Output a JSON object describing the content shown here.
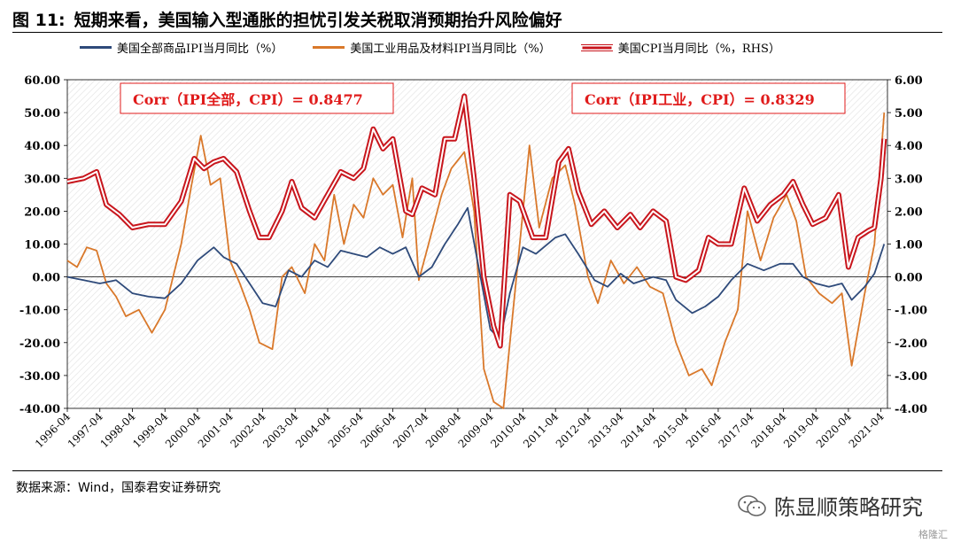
{
  "figure": {
    "number": "图 11:",
    "title": "短期来看，美国输入型通胀的担忧引发关税取消预期抬升风险偏好"
  },
  "source_text": "数据来源：Wind，国泰君安证券研究",
  "watermark": {
    "text": "陈显顺策略研究",
    "icon": "wechat-icon"
  },
  "corner_mark": "格隆汇",
  "colors": {
    "all": "#2e4a7a",
    "ind": "#d9782a",
    "cpi": "#c8161d",
    "annot": "#e01b1b"
  },
  "chart_data": {
    "type": "line",
    "legend_position": "top",
    "grid": false,
    "hatched_background": true,
    "x_ticks": [
      "1996-04",
      "1997-04",
      "1998-04",
      "1999-04",
      "2000-04",
      "2001-04",
      "2002-04",
      "2003-04",
      "2004-04",
      "2005-04",
      "2006-04",
      "2007-04",
      "2008-04",
      "2009-04",
      "2010-04",
      "2011-04",
      "2012-04",
      "2013-04",
      "2014-04",
      "2015-04",
      "2016-04",
      "2017-04",
      "2018-04",
      "2019-04",
      "2020-04",
      "2021-04"
    ],
    "y_left": {
      "min": -40,
      "max": 60,
      "ticks": [
        "60.00",
        "50.00",
        "40.00",
        "30.00",
        "20.00",
        "10.00",
        "0.00",
        "-10.00",
        "-20.00",
        "-30.00",
        "-40.00"
      ]
    },
    "y_right": {
      "min": -4,
      "max": 6,
      "ticks": [
        "6.00",
        "5.00",
        "4.00",
        "3.00",
        "2.00",
        "1.00",
        "0.00",
        "-1.00",
        "-2.00",
        "-3.00",
        "-4.00"
      ]
    },
    "annotations": [
      "Corr（IPI全部，CPI）= 0.8477",
      "Corr（IPI工业，CPI）= 0.8329"
    ],
    "series": [
      {
        "name": "美国全部商品IPI当月同比（%）",
        "axis": "left",
        "style": "thin",
        "points": [
          [
            1996.3,
            0
          ],
          [
            1996.8,
            -1
          ],
          [
            1997.3,
            -2
          ],
          [
            1997.8,
            -1
          ],
          [
            1998.3,
            -5
          ],
          [
            1998.8,
            -6
          ],
          [
            1999.3,
            -6.5
          ],
          [
            1999.8,
            -2
          ],
          [
            2000.3,
            5
          ],
          [
            2000.8,
            9
          ],
          [
            2001.1,
            6
          ],
          [
            2001.5,
            4
          ],
          [
            2001.9,
            -2
          ],
          [
            2002.3,
            -8
          ],
          [
            2002.7,
            -9
          ],
          [
            2003.1,
            2
          ],
          [
            2003.5,
            0
          ],
          [
            2003.9,
            5
          ],
          [
            2004.3,
            3
          ],
          [
            2004.7,
            8
          ],
          [
            2005.1,
            7
          ],
          [
            2005.5,
            6
          ],
          [
            2005.9,
            9
          ],
          [
            2006.3,
            7
          ],
          [
            2006.7,
            9
          ],
          [
            2007.1,
            0
          ],
          [
            2007.5,
            3
          ],
          [
            2007.9,
            10
          ],
          [
            2008.3,
            16
          ],
          [
            2008.6,
            21
          ],
          [
            2008.9,
            5
          ],
          [
            2009.3,
            -16
          ],
          [
            2009.6,
            -19
          ],
          [
            2009.9,
            -5
          ],
          [
            2010.3,
            9
          ],
          [
            2010.7,
            7
          ],
          [
            2011.3,
            12
          ],
          [
            2011.6,
            13
          ],
          [
            2012.0,
            7
          ],
          [
            2012.5,
            -1
          ],
          [
            2012.9,
            -3
          ],
          [
            2013.3,
            1
          ],
          [
            2013.7,
            -2
          ],
          [
            2014.3,
            0
          ],
          [
            2014.7,
            -1
          ],
          [
            2015.0,
            -7
          ],
          [
            2015.5,
            -11
          ],
          [
            2015.9,
            -9
          ],
          [
            2016.3,
            -6
          ],
          [
            2016.7,
            -1
          ],
          [
            2017.2,
            4
          ],
          [
            2017.7,
            2
          ],
          [
            2018.2,
            4
          ],
          [
            2018.6,
            4
          ],
          [
            2018.9,
            0
          ],
          [
            2019.3,
            -2
          ],
          [
            2019.7,
            -3
          ],
          [
            2020.1,
            -2
          ],
          [
            2020.4,
            -7
          ],
          [
            2020.8,
            -3
          ],
          [
            2021.1,
            1
          ],
          [
            2021.4,
            10
          ]
        ]
      },
      {
        "name": "美国工业用品及材料IPI当月同比（%）",
        "axis": "left",
        "style": "thin",
        "points": [
          [
            1996.3,
            5
          ],
          [
            1996.6,
            3
          ],
          [
            1996.9,
            9
          ],
          [
            1997.2,
            8
          ],
          [
            1997.5,
            -2
          ],
          [
            1997.8,
            -6
          ],
          [
            1998.1,
            -12
          ],
          [
            1998.5,
            -10
          ],
          [
            1998.9,
            -17
          ],
          [
            1999.3,
            -10
          ],
          [
            1999.8,
            10
          ],
          [
            2000.1,
            27
          ],
          [
            2000.4,
            43
          ],
          [
            2000.7,
            28
          ],
          [
            2001.0,
            30
          ],
          [
            2001.3,
            5
          ],
          [
            2001.6,
            -2
          ],
          [
            2001.9,
            -10
          ],
          [
            2002.2,
            -20
          ],
          [
            2002.6,
            -22
          ],
          [
            2002.9,
            0
          ],
          [
            2003.2,
            3
          ],
          [
            2003.6,
            -5
          ],
          [
            2003.9,
            10
          ],
          [
            2004.2,
            5
          ],
          [
            2004.5,
            25
          ],
          [
            2004.8,
            10
          ],
          [
            2005.1,
            22
          ],
          [
            2005.4,
            18
          ],
          [
            2005.7,
            30
          ],
          [
            2006.0,
            25
          ],
          [
            2006.3,
            28
          ],
          [
            2006.6,
            12
          ],
          [
            2006.9,
            30
          ],
          [
            2007.1,
            -1
          ],
          [
            2007.4,
            10
          ],
          [
            2007.8,
            25
          ],
          [
            2008.1,
            33
          ],
          [
            2008.5,
            38
          ],
          [
            2008.8,
            20
          ],
          [
            2009.1,
            -28
          ],
          [
            2009.4,
            -38
          ],
          [
            2009.7,
            -40
          ],
          [
            2009.9,
            -20
          ],
          [
            2010.2,
            10
          ],
          [
            2010.5,
            40
          ],
          [
            2010.8,
            15
          ],
          [
            2011.2,
            30
          ],
          [
            2011.6,
            34
          ],
          [
            2011.9,
            22
          ],
          [
            2012.3,
            0
          ],
          [
            2012.6,
            -8
          ],
          [
            2013.0,
            5
          ],
          [
            2013.4,
            -2
          ],
          [
            2013.8,
            3
          ],
          [
            2014.2,
            -3
          ],
          [
            2014.6,
            -5
          ],
          [
            2015.0,
            -20
          ],
          [
            2015.4,
            -30
          ],
          [
            2015.8,
            -28
          ],
          [
            2016.1,
            -33
          ],
          [
            2016.5,
            -20
          ],
          [
            2016.9,
            -10
          ],
          [
            2017.2,
            20
          ],
          [
            2017.6,
            5
          ],
          [
            2018.0,
            18
          ],
          [
            2018.4,
            25
          ],
          [
            2018.7,
            17
          ],
          [
            2019.0,
            0
          ],
          [
            2019.4,
            -5
          ],
          [
            2019.8,
            -8
          ],
          [
            2020.1,
            -5
          ],
          [
            2020.4,
            -27
          ],
          [
            2020.8,
            -5
          ],
          [
            2021.1,
            10
          ],
          [
            2021.4,
            50
          ]
        ]
      },
      {
        "name": "美国CPI当月同比（%，RHS）",
        "axis": "right",
        "style": "double",
        "points": [
          [
            1996.3,
            2.9
          ],
          [
            1996.8,
            3.0
          ],
          [
            1997.2,
            3.2
          ],
          [
            1997.5,
            2.2
          ],
          [
            1997.9,
            1.9
          ],
          [
            1998.3,
            1.5
          ],
          [
            1998.8,
            1.6
          ],
          [
            1999.3,
            1.6
          ],
          [
            1999.8,
            2.3
          ],
          [
            2000.2,
            3.6
          ],
          [
            2000.5,
            3.3
          ],
          [
            2000.8,
            3.5
          ],
          [
            2001.1,
            3.6
          ],
          [
            2001.5,
            3.2
          ],
          [
            2001.9,
            2.0
          ],
          [
            2002.2,
            1.2
          ],
          [
            2002.5,
            1.2
          ],
          [
            2002.9,
            2.0
          ],
          [
            2003.2,
            2.9
          ],
          [
            2003.5,
            2.1
          ],
          [
            2003.9,
            1.8
          ],
          [
            2004.3,
            2.5
          ],
          [
            2004.7,
            3.2
          ],
          [
            2005.1,
            3.0
          ],
          [
            2005.4,
            3.3
          ],
          [
            2005.7,
            4.5
          ],
          [
            2006.0,
            3.9
          ],
          [
            2006.3,
            4.2
          ],
          [
            2006.7,
            2.0
          ],
          [
            2006.9,
            1.9
          ],
          [
            2007.2,
            2.7
          ],
          [
            2007.6,
            2.5
          ],
          [
            2007.9,
            4.2
          ],
          [
            2008.2,
            4.2
          ],
          [
            2008.5,
            5.5
          ],
          [
            2008.8,
            3.0
          ],
          [
            2009.1,
            0.0
          ],
          [
            2009.4,
            -1.5
          ],
          [
            2009.6,
            -2.1
          ],
          [
            2009.9,
            2.5
          ],
          [
            2010.2,
            2.3
          ],
          [
            2010.6,
            1.2
          ],
          [
            2011.0,
            1.2
          ],
          [
            2011.4,
            3.5
          ],
          [
            2011.7,
            3.9
          ],
          [
            2012.0,
            2.6
          ],
          [
            2012.4,
            1.6
          ],
          [
            2012.8,
            2.0
          ],
          [
            2013.2,
            1.5
          ],
          [
            2013.6,
            1.9
          ],
          [
            2013.9,
            1.5
          ],
          [
            2014.3,
            2.0
          ],
          [
            2014.7,
            1.7
          ],
          [
            2015.0,
            0.0
          ],
          [
            2015.3,
            -0.1
          ],
          [
            2015.7,
            0.2
          ],
          [
            2016.0,
            1.2
          ],
          [
            2016.3,
            1.0
          ],
          [
            2016.7,
            1.0
          ],
          [
            2017.1,
            2.7
          ],
          [
            2017.5,
            1.7
          ],
          [
            2017.9,
            2.2
          ],
          [
            2018.3,
            2.5
          ],
          [
            2018.6,
            2.9
          ],
          [
            2018.9,
            2.2
          ],
          [
            2019.2,
            1.6
          ],
          [
            2019.6,
            1.8
          ],
          [
            2020.0,
            2.5
          ],
          [
            2020.3,
            0.3
          ],
          [
            2020.6,
            1.2
          ],
          [
            2020.9,
            1.4
          ],
          [
            2021.1,
            1.5
          ],
          [
            2021.3,
            3.0
          ],
          [
            2021.4,
            4.2
          ]
        ]
      }
    ]
  }
}
